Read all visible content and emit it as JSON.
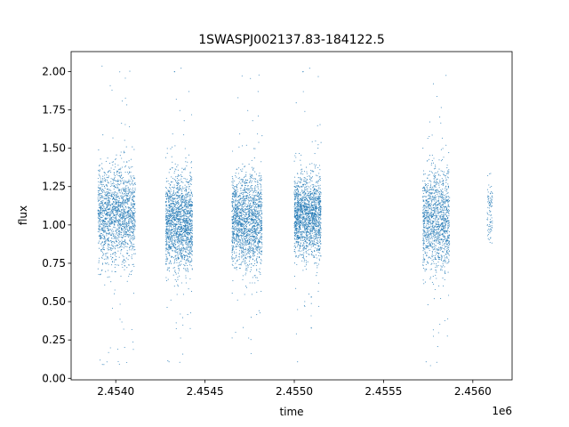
{
  "chart_data": {
    "type": "scatter",
    "title": "1SWASPJ002137.83-184122.5",
    "xlabel": "time",
    "ylabel": "flux",
    "x_offset_label": "1e6",
    "xlim": [
      2.45375,
      2.45622
    ],
    "ylim": [
      -0.01,
      2.13
    ],
    "x_ticks": [
      2.454,
      2.4545,
      2.455,
      2.4555,
      2.456
    ],
    "x_tick_labels": [
      "2.4540",
      "2.4545",
      "2.4550",
      "2.4555",
      "2.4560"
    ],
    "y_ticks": [
      0.0,
      0.25,
      0.5,
      0.75,
      1.0,
      1.25,
      1.5,
      1.75,
      2.0
    ],
    "y_tick_labels": [
      "0.00",
      "0.25",
      "0.50",
      "0.75",
      "1.00",
      "1.25",
      "1.50",
      "1.75",
      "2.00"
    ],
    "grid": false,
    "legend": "none",
    "marker_color": "#1f77b4",
    "observing_seasons": [
      {
        "x_start": 2.4539,
        "x_end": 2.45411,
        "flux_center": 1.06,
        "flux_spread": 0.2,
        "n_points": 1700
      },
      {
        "x_start": 2.45428,
        "x_end": 2.45443,
        "flux_center": 1.02,
        "flux_spread": 0.2,
        "n_points": 1700
      },
      {
        "x_start": 2.45465,
        "x_end": 2.45482,
        "flux_center": 1.02,
        "flux_spread": 0.2,
        "n_points": 1700
      },
      {
        "x_start": 2.455,
        "x_end": 2.45515,
        "flux_center": 1.06,
        "flux_spread": 0.17,
        "n_points": 1700
      },
      {
        "x_start": 2.45572,
        "x_end": 2.45587,
        "flux_center": 1.04,
        "flux_spread": 0.22,
        "n_points": 1300
      },
      {
        "x_start": 2.45608,
        "x_end": 2.45611,
        "flux_center": 1.08,
        "flux_spread": 0.15,
        "n_points": 90
      }
    ]
  }
}
